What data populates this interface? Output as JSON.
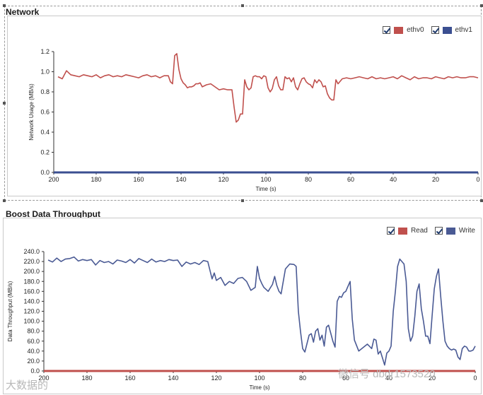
{
  "colors": {
    "ethv0": "#c0504d",
    "ethv1": "#3b4f91",
    "read": "#c0504d",
    "write": "#4a5a94"
  },
  "chart_data": [
    {
      "type": "line",
      "title": "Network",
      "xlabel": "Time (s)",
      "ylabel": "Network Usage (MB/s)",
      "xlim": [
        200,
        0
      ],
      "ylim": [
        0,
        1.2
      ],
      "x_ticks": [
        "200",
        "180",
        "160",
        "140",
        "120",
        "100",
        "80",
        "60",
        "40",
        "20",
        "0"
      ],
      "y_ticks": [
        "0.0",
        "0.2",
        "0.4",
        "0.6",
        "0.8",
        "1.0",
        "1.2"
      ],
      "legend": [
        {
          "name": "ethv0",
          "checked": true
        },
        {
          "name": "ethv1",
          "checked": true
        }
      ],
      "series": [
        {
          "name": "ethv0",
          "x": [
            198,
            196,
            194,
            192,
            190,
            188,
            186,
            184,
            182,
            180,
            178,
            176,
            174,
            172,
            170,
            168,
            166,
            164,
            162,
            160,
            158,
            156,
            154,
            152,
            150,
            148,
            146,
            145,
            144,
            143,
            142,
            141,
            140,
            139,
            138,
            137,
            136,
            135,
            134,
            133,
            132,
            131,
            130,
            128,
            126,
            124,
            122,
            120,
            118,
            116,
            115,
            114,
            113,
            112,
            111,
            110,
            109,
            108,
            107,
            106,
            105,
            104,
            103,
            102,
            101,
            100,
            99,
            98,
            97,
            96,
            95,
            94,
            93,
            92,
            91,
            90,
            89,
            88,
            87,
            86,
            85,
            84,
            83,
            82,
            81,
            80,
            79,
            78,
            77,
            76,
            75,
            74,
            73,
            72,
            71,
            70,
            69,
            68,
            67,
            66,
            64,
            62,
            60,
            58,
            56,
            54,
            52,
            50,
            48,
            46,
            44,
            42,
            40,
            38,
            36,
            34,
            32,
            30,
            28,
            26,
            24,
            22,
            20,
            18,
            16,
            14,
            12,
            10,
            8,
            6,
            4,
            2,
            0
          ],
          "values": [
            0.95,
            0.93,
            1.01,
            0.97,
            0.96,
            0.95,
            0.97,
            0.96,
            0.95,
            0.97,
            0.94,
            0.96,
            0.97,
            0.95,
            0.96,
            0.95,
            0.97,
            0.96,
            0.95,
            0.94,
            0.96,
            0.97,
            0.95,
            0.96,
            0.94,
            0.96,
            0.96,
            0.9,
            0.88,
            1.16,
            1.18,
            1.02,
            0.93,
            0.89,
            0.87,
            0.84,
            0.85,
            0.85,
            0.86,
            0.88,
            0.88,
            0.89,
            0.85,
            0.87,
            0.88,
            0.85,
            0.82,
            0.83,
            0.82,
            0.82,
            0.65,
            0.5,
            0.52,
            0.58,
            0.58,
            0.92,
            0.85,
            0.82,
            0.84,
            0.95,
            0.96,
            0.95,
            0.95,
            0.93,
            0.96,
            0.95,
            0.84,
            0.8,
            0.83,
            0.92,
            0.95,
            0.86,
            0.82,
            0.82,
            0.95,
            0.93,
            0.94,
            0.9,
            0.94,
            0.85,
            0.82,
            0.88,
            0.93,
            0.94,
            0.9,
            0.88,
            0.87,
            0.84,
            0.92,
            0.89,
            0.92,
            0.9,
            0.85,
            0.86,
            0.78,
            0.74,
            0.72,
            0.72,
            0.92,
            0.88,
            0.93,
            0.94,
            0.93,
            0.94,
            0.95,
            0.94,
            0.93,
            0.95,
            0.93,
            0.94,
            0.93,
            0.94,
            0.95,
            0.93,
            0.96,
            0.94,
            0.92,
            0.95,
            0.93,
            0.94,
            0.94,
            0.93,
            0.95,
            0.94,
            0.93,
            0.95,
            0.94,
            0.95,
            0.94,
            0.94,
            0.95,
            0.95,
            0.94
          ]
        },
        {
          "name": "ethv1",
          "x": [
            200,
            0
          ],
          "values": [
            0.0,
            0.0
          ]
        }
      ]
    },
    {
      "type": "line",
      "title": "Boost Data Throughput",
      "xlabel": "Time (s)",
      "ylabel": "Data Throughput (MB/s)",
      "xlim": [
        200,
        0
      ],
      "ylim": [
        0,
        240
      ],
      "x_ticks": [
        "200",
        "180",
        "160",
        "140",
        "120",
        "100",
        "80",
        "60",
        "40",
        "20",
        "0"
      ],
      "y_ticks": [
        "0.0",
        "20.0",
        "40.0",
        "60.0",
        "80.0",
        "100.0",
        "120.0",
        "140.0",
        "160.0",
        "180.0",
        "200.0",
        "220.0",
        "240.0"
      ],
      "legend": [
        {
          "name": "Read",
          "checked": true
        },
        {
          "name": "Write",
          "checked": true
        }
      ],
      "series": [
        {
          "name": "Read",
          "x": [
            200,
            0
          ],
          "values": [
            0.0,
            0.0
          ]
        },
        {
          "name": "Write",
          "x": [
            198,
            196,
            194,
            192,
            190,
            188,
            186,
            184,
            182,
            180,
            178,
            176,
            174,
            172,
            170,
            168,
            166,
            164,
            162,
            160,
            158,
            156,
            154,
            152,
            150,
            148,
            146,
            144,
            142,
            140,
            138,
            136,
            134,
            132,
            130,
            128,
            126,
            124,
            122,
            121,
            120,
            118,
            116,
            114,
            112,
            110,
            108,
            106,
            104,
            102,
            101,
            100,
            99,
            98,
            96,
            94,
            93,
            92,
            91,
            90,
            88,
            86,
            84,
            83,
            82,
            81,
            80,
            79,
            78,
            77,
            76,
            75,
            74,
            73,
            72,
            71,
            70,
            69,
            68,
            67,
            66,
            65,
            64,
            63,
            62,
            61,
            60,
            59,
            58,
            57,
            56,
            54,
            52,
            50,
            48,
            47,
            46,
            45,
            44,
            43,
            42,
            41,
            40,
            39,
            38,
            37,
            36,
            35,
            34,
            33,
            32,
            31,
            30,
            29,
            28,
            27,
            26,
            25,
            24,
            23,
            22,
            21,
            20,
            19,
            18,
            17,
            16,
            15,
            14,
            13,
            12,
            11,
            10,
            9,
            8,
            7,
            6,
            5,
            4,
            3,
            2,
            1,
            0
          ],
          "values": [
            223,
            219,
            227,
            220,
            225,
            226,
            229,
            221,
            224,
            222,
            224,
            213,
            222,
            218,
            220,
            215,
            223,
            221,
            218,
            224,
            217,
            226,
            222,
            218,
            225,
            219,
            222,
            220,
            224,
            222,
            223,
            210,
            219,
            215,
            218,
            214,
            222,
            220,
            185,
            197,
            182,
            188,
            172,
            180,
            176,
            186,
            188,
            180,
            162,
            168,
            210,
            186,
            176,
            168,
            160,
            174,
            190,
            172,
            160,
            155,
            205,
            215,
            214,
            210,
            120,
            80,
            45,
            38,
            55,
            72,
            75,
            58,
            80,
            85,
            62,
            72,
            50,
            88,
            92,
            76,
            60,
            48,
            140,
            150,
            148,
            157,
            160,
            170,
            180,
            105,
            62,
            40,
            47,
            54,
            45,
            64,
            62,
            34,
            40,
            26,
            12,
            36,
            40,
            50,
            120,
            160,
            210,
            225,
            220,
            215,
            180,
            85,
            60,
            70,
            110,
            160,
            175,
            125,
            100,
            70,
            70,
            55,
            110,
            165,
            190,
            205,
            150,
            100,
            60,
            50,
            45,
            42,
            44,
            42,
            28,
            23,
            45,
            50,
            48,
            40,
            40,
            42,
            50
          ]
        }
      ]
    }
  ],
  "watermark": {
    "left": "大数据的",
    "right": "微信号 dbdr1573520"
  }
}
